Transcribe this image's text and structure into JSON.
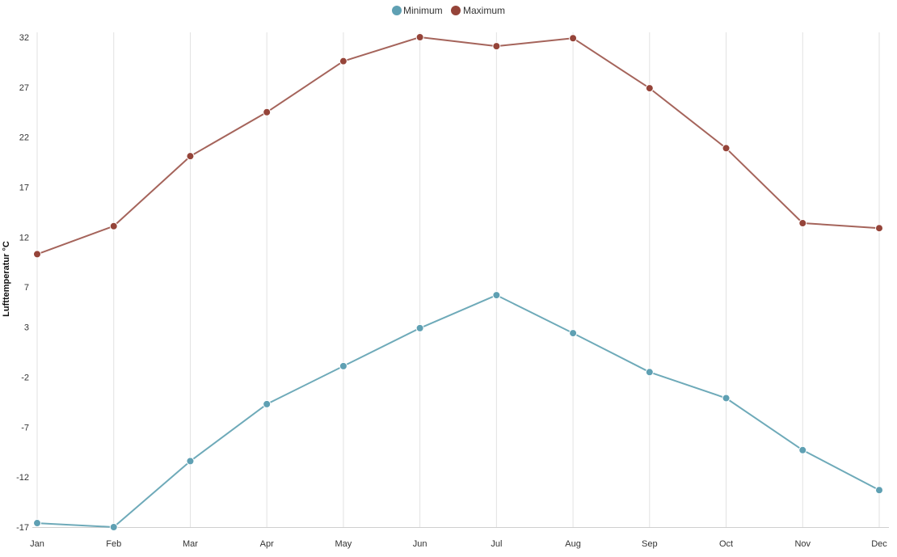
{
  "chart_data": {
    "type": "line",
    "categories": [
      "Jan",
      "Feb",
      "Mar",
      "Apr",
      "May",
      "Jun",
      "Jul",
      "Aug",
      "Sep",
      "Oct",
      "Nov",
      "Dec"
    ],
    "ylabel": "Lufttemperatur °C",
    "yticks": [
      32,
      27,
      22,
      17,
      12,
      7,
      3,
      -2,
      -7,
      -12,
      -17
    ],
    "ylim": [
      -17,
      32
    ],
    "grid": "vertical",
    "legend_position": "top-center",
    "series": [
      {
        "name": "Minimum",
        "color": "#5fa0b3",
        "line_color": "#6eaab9",
        "values": [
          -16.6,
          -17.0,
          -10.4,
          -4.7,
          -0.9,
          2.9,
          6.2,
          2.4,
          -1.5,
          -4.1,
          -9.3,
          -13.3
        ]
      },
      {
        "name": "Maximum",
        "color": "#954439",
        "line_color": "#a5645b",
        "values": [
          10.3,
          13.1,
          20.1,
          24.5,
          29.6,
          32.0,
          31.1,
          31.9,
          26.9,
          20.9,
          13.4,
          12.9
        ]
      }
    ]
  }
}
